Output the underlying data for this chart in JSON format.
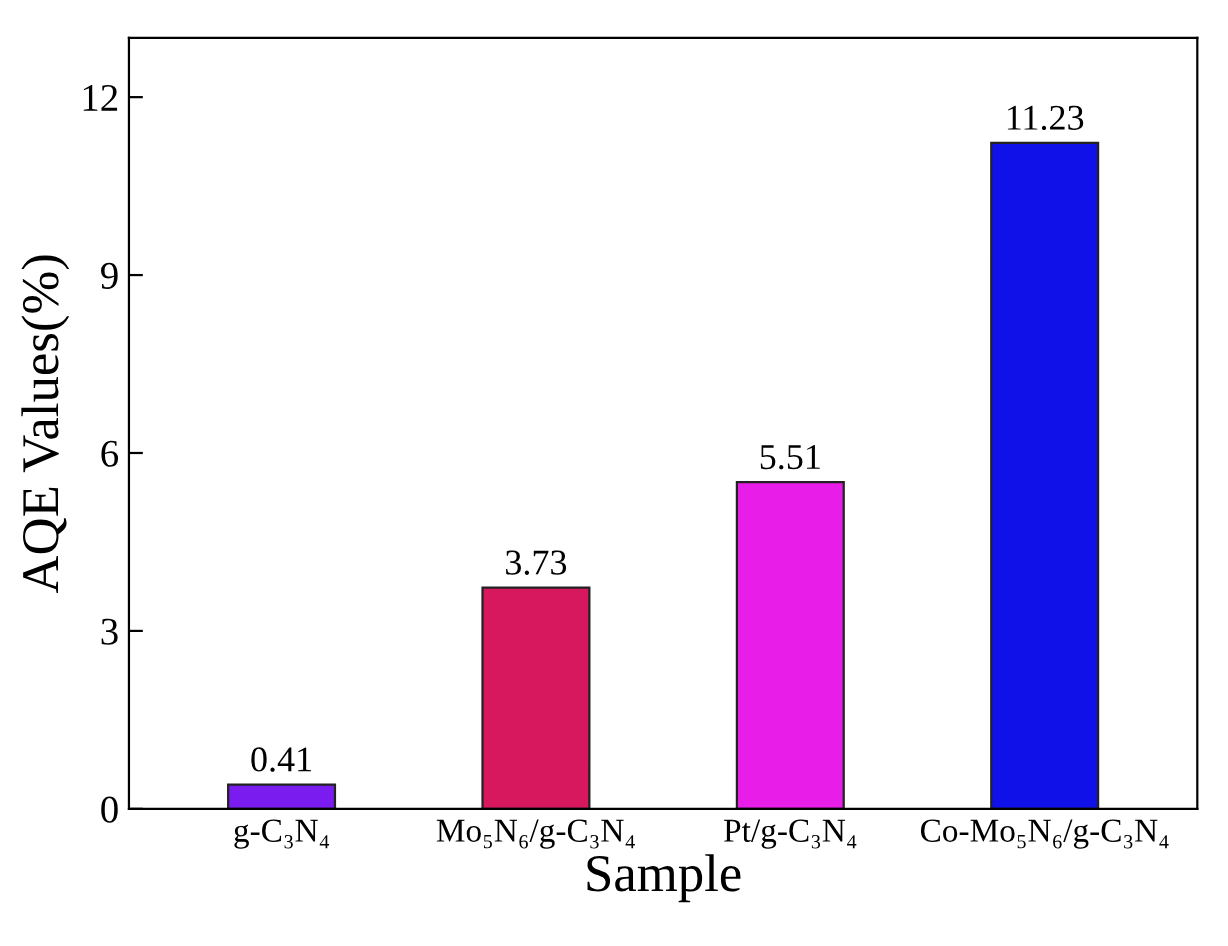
{
  "chart_data": {
    "type": "bar",
    "xlabel": "Sample",
    "ylabel": "AQE Values(%)",
    "categories": [
      "g-C₃N₄",
      "Mo₅N₆/g-C₃N₄",
      "Pt/g-C₃N₄",
      "Co-Mo₅N₆/g-C₃N₄"
    ],
    "values": [
      0.41,
      3.73,
      5.51,
      11.23
    ],
    "colors": [
      "#7a1cf0",
      "#d8185e",
      "#e81ee8",
      "#1010e8"
    ],
    "ylim": [
      0,
      13
    ],
    "yticks": [
      0,
      3,
      6,
      9,
      12
    ],
    "data_labels": true,
    "grid": false,
    "legend": false
  }
}
